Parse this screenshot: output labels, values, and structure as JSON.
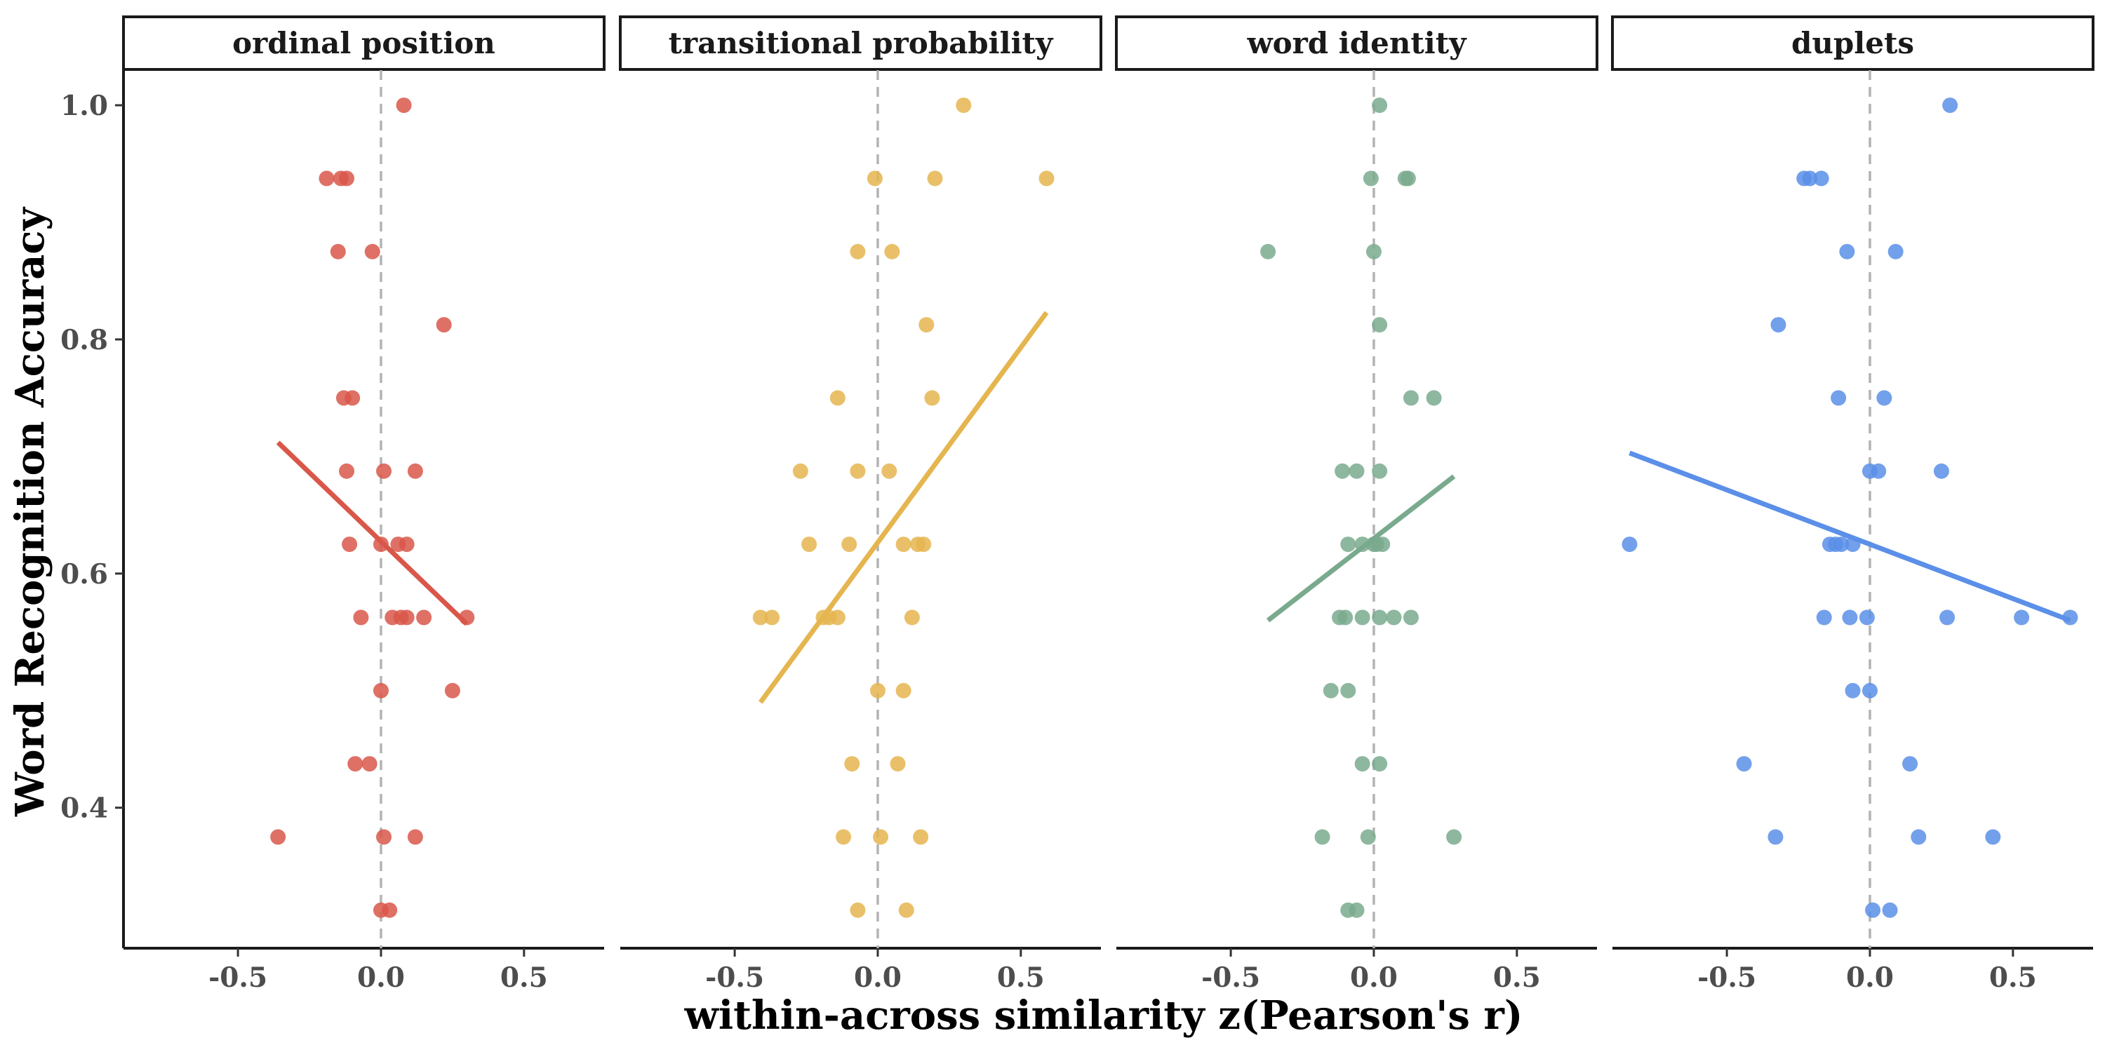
{
  "chart_data": {
    "type": "scatter",
    "xlabel": "within-across similarity z(Pearson's r)",
    "ylabel": "Word Recognition Accuracy",
    "xlim": [
      -0.9,
      0.78
    ],
    "ylim": [
      0.28,
      1.03
    ],
    "x_ticks": [
      "-0.5",
      "0.0",
      "0.5"
    ],
    "x_tick_values": [
      -0.5,
      0.0,
      0.5
    ],
    "y_ticks": [
      "0.4",
      "0.6",
      "0.8",
      "1.0"
    ],
    "y_tick_values": [
      0.4,
      0.6,
      0.8,
      1.0
    ],
    "reference_line_x": 0,
    "grid": false,
    "legend": "none",
    "panels": [
      {
        "name": "ordinal position",
        "color": "#d9574a",
        "fit": {
          "x": [
            -0.36,
            0.3
          ],
          "y": [
            0.712,
            0.557
          ]
        },
        "points": [
          {
            "x": 0.08,
            "y": 1.0
          },
          {
            "x": -0.19,
            "y": 0.9375
          },
          {
            "x": -0.14,
            "y": 0.9375
          },
          {
            "x": -0.12,
            "y": 0.9375
          },
          {
            "x": -0.15,
            "y": 0.875
          },
          {
            "x": -0.03,
            "y": 0.875
          },
          {
            "x": 0.22,
            "y": 0.8125
          },
          {
            "x": -0.13,
            "y": 0.75
          },
          {
            "x": -0.1,
            "y": 0.75
          },
          {
            "x": -0.12,
            "y": 0.6875
          },
          {
            "x": 0.01,
            "y": 0.6875
          },
          {
            "x": 0.12,
            "y": 0.6875
          },
          {
            "x": -0.11,
            "y": 0.625
          },
          {
            "x": 0.0,
            "y": 0.625
          },
          {
            "x": 0.06,
            "y": 0.625
          },
          {
            "x": 0.09,
            "y": 0.625
          },
          {
            "x": -0.07,
            "y": 0.5625
          },
          {
            "x": 0.04,
            "y": 0.5625
          },
          {
            "x": 0.07,
            "y": 0.5625
          },
          {
            "x": 0.09,
            "y": 0.5625
          },
          {
            "x": 0.15,
            "y": 0.5625
          },
          {
            "x": 0.3,
            "y": 0.5625
          },
          {
            "x": 0.0,
            "y": 0.5
          },
          {
            "x": 0.25,
            "y": 0.5
          },
          {
            "x": -0.09,
            "y": 0.4375
          },
          {
            "x": -0.04,
            "y": 0.4375
          },
          {
            "x": -0.36,
            "y": 0.375
          },
          {
            "x": 0.01,
            "y": 0.375
          },
          {
            "x": 0.12,
            "y": 0.375
          },
          {
            "x": 0.0,
            "y": 0.3125
          },
          {
            "x": 0.03,
            "y": 0.3125
          }
        ]
      },
      {
        "name": "transitional probability",
        "color": "#e5b54f",
        "fit": {
          "x": [
            -0.41,
            0.59
          ],
          "y": [
            0.49,
            0.823
          ]
        },
        "points": [
          {
            "x": 0.3,
            "y": 1.0
          },
          {
            "x": -0.01,
            "y": 0.9375
          },
          {
            "x": 0.2,
            "y": 0.9375
          },
          {
            "x": 0.59,
            "y": 0.9375
          },
          {
            "x": -0.07,
            "y": 0.875
          },
          {
            "x": 0.05,
            "y": 0.875
          },
          {
            "x": 0.17,
            "y": 0.8125
          },
          {
            "x": -0.14,
            "y": 0.75
          },
          {
            "x": 0.19,
            "y": 0.75
          },
          {
            "x": -0.27,
            "y": 0.6875
          },
          {
            "x": -0.07,
            "y": 0.6875
          },
          {
            "x": 0.04,
            "y": 0.6875
          },
          {
            "x": -0.24,
            "y": 0.625
          },
          {
            "x": -0.1,
            "y": 0.625
          },
          {
            "x": 0.09,
            "y": 0.625
          },
          {
            "x": 0.14,
            "y": 0.625
          },
          {
            "x": 0.16,
            "y": 0.625
          },
          {
            "x": -0.41,
            "y": 0.5625
          },
          {
            "x": -0.37,
            "y": 0.5625
          },
          {
            "x": -0.19,
            "y": 0.5625
          },
          {
            "x": -0.17,
            "y": 0.5625
          },
          {
            "x": -0.14,
            "y": 0.5625
          },
          {
            "x": 0.12,
            "y": 0.5625
          },
          {
            "x": 0.0,
            "y": 0.5
          },
          {
            "x": 0.09,
            "y": 0.5
          },
          {
            "x": -0.09,
            "y": 0.4375
          },
          {
            "x": 0.07,
            "y": 0.4375
          },
          {
            "x": -0.12,
            "y": 0.375
          },
          {
            "x": 0.01,
            "y": 0.375
          },
          {
            "x": 0.15,
            "y": 0.375
          },
          {
            "x": -0.07,
            "y": 0.3125
          },
          {
            "x": 0.1,
            "y": 0.3125
          }
        ]
      },
      {
        "name": "word identity",
        "color": "#7aaa8e",
        "fit": {
          "x": [
            -0.37,
            0.28
          ],
          "y": [
            0.56,
            0.683
          ]
        },
        "points": [
          {
            "x": 0.02,
            "y": 1.0
          },
          {
            "x": -0.01,
            "y": 0.9375
          },
          {
            "x": 0.11,
            "y": 0.9375
          },
          {
            "x": 0.12,
            "y": 0.9375
          },
          {
            "x": -0.37,
            "y": 0.875
          },
          {
            "x": 0.0,
            "y": 0.875
          },
          {
            "x": 0.02,
            "y": 0.8125
          },
          {
            "x": 0.13,
            "y": 0.75
          },
          {
            "x": 0.21,
            "y": 0.75
          },
          {
            "x": -0.11,
            "y": 0.6875
          },
          {
            "x": -0.06,
            "y": 0.6875
          },
          {
            "x": 0.02,
            "y": 0.6875
          },
          {
            "x": -0.09,
            "y": 0.625
          },
          {
            "x": -0.04,
            "y": 0.625
          },
          {
            "x": 0.0,
            "y": 0.625
          },
          {
            "x": 0.01,
            "y": 0.625
          },
          {
            "x": 0.03,
            "y": 0.625
          },
          {
            "x": -0.12,
            "y": 0.5625
          },
          {
            "x": -0.1,
            "y": 0.5625
          },
          {
            "x": -0.04,
            "y": 0.5625
          },
          {
            "x": 0.02,
            "y": 0.5625
          },
          {
            "x": 0.07,
            "y": 0.5625
          },
          {
            "x": 0.13,
            "y": 0.5625
          },
          {
            "x": -0.15,
            "y": 0.5
          },
          {
            "x": -0.09,
            "y": 0.5
          },
          {
            "x": -0.04,
            "y": 0.4375
          },
          {
            "x": 0.02,
            "y": 0.4375
          },
          {
            "x": -0.18,
            "y": 0.375
          },
          {
            "x": -0.02,
            "y": 0.375
          },
          {
            "x": 0.28,
            "y": 0.375
          },
          {
            "x": -0.09,
            "y": 0.3125
          },
          {
            "x": -0.06,
            "y": 0.3125
          }
        ]
      },
      {
        "name": "duplets",
        "color": "#5b8fe8",
        "fit": {
          "x": [
            -0.84,
            0.7
          ],
          "y": [
            0.703,
            0.56
          ]
        },
        "points": [
          {
            "x": 0.28,
            "y": 1.0
          },
          {
            "x": -0.23,
            "y": 0.9375
          },
          {
            "x": -0.21,
            "y": 0.9375
          },
          {
            "x": -0.17,
            "y": 0.9375
          },
          {
            "x": -0.08,
            "y": 0.875
          },
          {
            "x": 0.09,
            "y": 0.875
          },
          {
            "x": -0.32,
            "y": 0.8125
          },
          {
            "x": -0.11,
            "y": 0.75
          },
          {
            "x": 0.05,
            "y": 0.75
          },
          {
            "x": 0.0,
            "y": 0.6875
          },
          {
            "x": 0.03,
            "y": 0.6875
          },
          {
            "x": 0.25,
            "y": 0.6875
          },
          {
            "x": -0.84,
            "y": 0.625
          },
          {
            "x": -0.14,
            "y": 0.625
          },
          {
            "x": -0.12,
            "y": 0.625
          },
          {
            "x": -0.1,
            "y": 0.625
          },
          {
            "x": -0.06,
            "y": 0.625
          },
          {
            "x": -0.16,
            "y": 0.5625
          },
          {
            "x": -0.07,
            "y": 0.5625
          },
          {
            "x": -0.01,
            "y": 0.5625
          },
          {
            "x": 0.27,
            "y": 0.5625
          },
          {
            "x": 0.53,
            "y": 0.5625
          },
          {
            "x": 0.7,
            "y": 0.5625
          },
          {
            "x": -0.06,
            "y": 0.5
          },
          {
            "x": 0.0,
            "y": 0.5
          },
          {
            "x": -0.44,
            "y": 0.4375
          },
          {
            "x": 0.14,
            "y": 0.4375
          },
          {
            "x": -0.33,
            "y": 0.375
          },
          {
            "x": 0.17,
            "y": 0.375
          },
          {
            "x": 0.43,
            "y": 0.375
          },
          {
            "x": 0.01,
            "y": 0.3125
          },
          {
            "x": 0.07,
            "y": 0.3125
          }
        ]
      }
    ]
  }
}
